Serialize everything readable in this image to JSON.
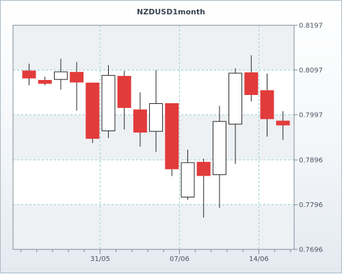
{
  "chart_data": {
    "type": "candlestick",
    "title": "NZDUSD1month",
    "y_axis": {
      "ticks": [
        "0.8197",
        "0.8097",
        "0.7997",
        "0.7896",
        "0.7796",
        "0.7696"
      ],
      "ylim": [
        0.7696,
        0.8197
      ],
      "position": "right"
    },
    "x_axis": {
      "ticks": [
        {
          "label": "31/05",
          "index": 4.5
        },
        {
          "label": "07/06",
          "index": 9.5
        },
        {
          "label": "14/06",
          "index": 14.5
        }
      ]
    },
    "grid": true,
    "colors": {
      "bearish": "#e23b3b",
      "bullish": "#ffffff",
      "outline": "#222222",
      "grid": "#8fd0c8",
      "band": "#eef1f4"
    },
    "candles": [
      {
        "open": 0.8095,
        "high": 0.8111,
        "low": 0.8063,
        "close": 0.8079
      },
      {
        "open": 0.8074,
        "high": 0.8082,
        "low": 0.8063,
        "close": 0.8067
      },
      {
        "open": 0.8076,
        "high": 0.8122,
        "low": 0.8053,
        "close": 0.8093
      },
      {
        "open": 0.8092,
        "high": 0.8115,
        "low": 0.8006,
        "close": 0.807
      },
      {
        "open": 0.8068,
        "high": 0.8068,
        "low": 0.7934,
        "close": 0.7944
      },
      {
        "open": 0.7961,
        "high": 0.8108,
        "low": 0.7945,
        "close": 0.8085
      },
      {
        "open": 0.8083,
        "high": 0.8095,
        "low": 0.7964,
        "close": 0.8013
      },
      {
        "open": 0.8008,
        "high": 0.8047,
        "low": 0.7926,
        "close": 0.7958
      },
      {
        "open": 0.796,
        "high": 0.8097,
        "low": 0.7914,
        "close": 0.8022
      },
      {
        "open": 0.8022,
        "high": 0.8022,
        "low": 0.786,
        "close": 0.7876
      },
      {
        "open": 0.7813,
        "high": 0.7919,
        "low": 0.7807,
        "close": 0.789
      },
      {
        "open": 0.7891,
        "high": 0.7899,
        "low": 0.7767,
        "close": 0.7861
      },
      {
        "open": 0.7863,
        "high": 0.8017,
        "low": 0.7789,
        "close": 0.7982
      },
      {
        "open": 0.7976,
        "high": 0.8101,
        "low": 0.7887,
        "close": 0.809
      },
      {
        "open": 0.8091,
        "high": 0.813,
        "low": 0.8027,
        "close": 0.8042
      },
      {
        "open": 0.8051,
        "high": 0.8089,
        "low": 0.7948,
        "close": 0.7988
      },
      {
        "open": 0.7983,
        "high": 0.8005,
        "low": 0.7941,
        "close": 0.7974
      }
    ]
  }
}
